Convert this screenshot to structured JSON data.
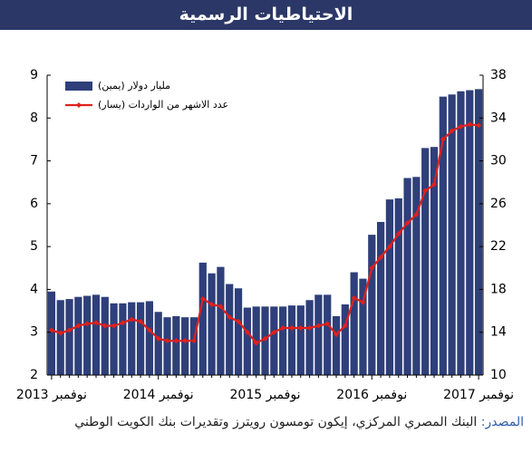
{
  "chart_data": {
    "type": "bar_line",
    "title": "الاحتياطيات الرسمية",
    "source_label": "المصدر:",
    "source_text": "البنك المصري المركزي، إيكون تومسون رويترز وتقديرات بنك الكويت الوطني",
    "categories": [
      "نوفمبر 2013",
      null,
      null,
      null,
      null,
      null,
      null,
      null,
      null,
      null,
      null,
      null,
      "نوفمبر 2014",
      null,
      null,
      null,
      null,
      null,
      null,
      null,
      null,
      null,
      null,
      null,
      "نوفمبر 2015",
      null,
      null,
      null,
      null,
      null,
      null,
      null,
      null,
      null,
      null,
      null,
      "نوفمبر 2016",
      null,
      null,
      null,
      null,
      null,
      null,
      null,
      null,
      null,
      null,
      null,
      "نوفمبر 2017"
    ],
    "series": [
      {
        "name": "مليار دولار (يمين)",
        "type": "bar",
        "axis": "y2",
        "color": "#2e3f7a",
        "values": [
          17.8,
          17.0,
          17.1,
          17.3,
          17.4,
          17.5,
          17.3,
          16.7,
          16.7,
          16.8,
          16.8,
          16.9,
          15.9,
          15.4,
          15.5,
          15.4,
          15.4,
          20.5,
          19.5,
          20.1,
          18.5,
          18.1,
          16.3,
          16.4,
          16.4,
          16.4,
          16.4,
          16.5,
          16.5,
          17.0,
          17.5,
          17.5,
          15.5,
          16.6,
          19.6,
          19.0,
          23.1,
          24.3,
          26.4,
          26.5,
          28.4,
          28.5,
          31.2,
          31.3,
          36.0,
          36.2,
          36.5,
          36.6,
          36.7
        ]
      },
      {
        "name": "عدد الاشهر من الواردات (يسار)",
        "type": "line",
        "color": "#e0201c",
        "values": [
          3.05,
          2.98,
          3.05,
          3.15,
          3.2,
          3.22,
          3.15,
          3.15,
          3.22,
          3.3,
          3.25,
          3.05,
          2.85,
          2.8,
          2.8,
          2.8,
          2.8,
          3.78,
          3.65,
          3.6,
          3.35,
          3.25,
          3.0,
          2.75,
          2.85,
          3.0,
          3.1,
          3.1,
          3.1,
          3.1,
          3.15,
          3.2,
          2.95,
          3.15,
          3.8,
          3.7,
          4.5,
          4.75,
          5.0,
          5.3,
          5.55,
          5.75,
          6.3,
          6.45,
          7.5,
          7.7,
          7.8,
          7.85,
          7.83
        ]
      }
    ],
    "ylim": [
      2,
      9
    ],
    "yticks": [
      2,
      3,
      4,
      5,
      6,
      7,
      8,
      9
    ],
    "y2lim": [
      10,
      38
    ],
    "y2ticks": [
      10,
      14,
      18,
      22,
      26,
      30,
      34,
      38
    ],
    "legend": "top-left"
  }
}
